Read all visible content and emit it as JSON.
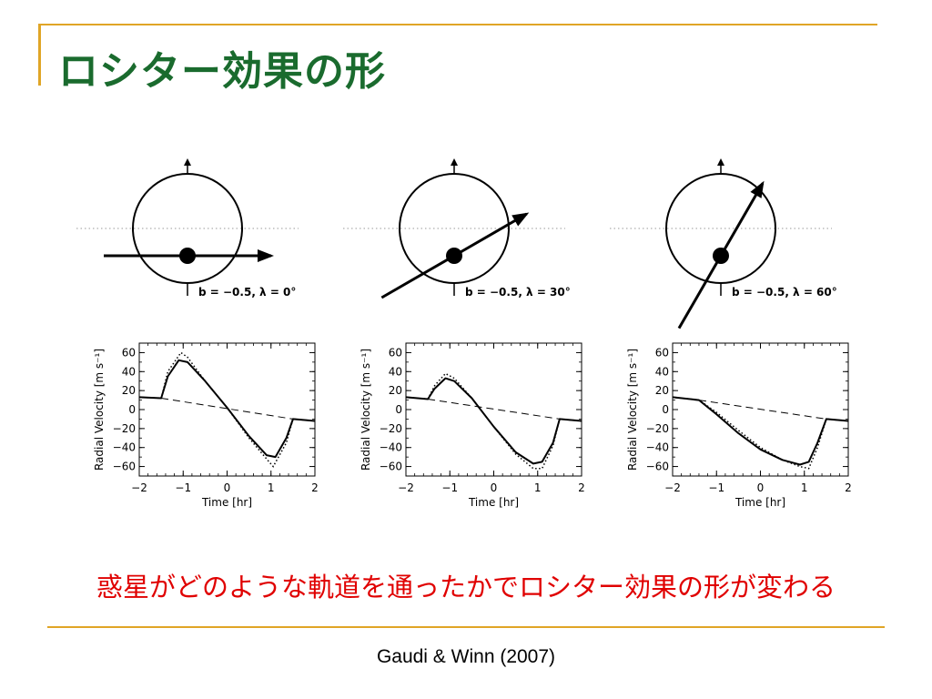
{
  "slide": {
    "title": "ロシター効果の形",
    "caption": "惑星がどのような軌道を通ったかでロシター効果の形が変わる",
    "credit": "Gaudi & Winn (2007)",
    "accent_color": "#e0a526",
    "title_color": "#1a6b2e",
    "caption_color": "#e00000"
  },
  "diagrams": [
    {
      "label": "b = −0.5, λ = 0°",
      "b": -0.5,
      "lambda_deg": 0
    },
    {
      "label": "b = −0.5, λ = 30°",
      "b": -0.5,
      "lambda_deg": 30
    },
    {
      "label": "b = −0.5, λ = 60°",
      "b": -0.5,
      "lambda_deg": 60
    }
  ],
  "chart_data": [
    {
      "type": "line",
      "xlabel": "Time [hr]",
      "ylabel": "Radial Velocity [m s⁻¹]",
      "xlim": [
        -2,
        2
      ],
      "ylim": [
        -70,
        70
      ],
      "xticks": [
        "−2",
        "−1",
        "0",
        "1",
        "2"
      ],
      "yticks": [
        "60",
        "40",
        "20",
        "0",
        "−20",
        "−40",
        "−60"
      ],
      "series": [
        {
          "style": "solid",
          "x": [
            -2,
            -1.5,
            -1.35,
            -1.1,
            -0.9,
            -0.5,
            0,
            0.5,
            0.9,
            1.1,
            1.35,
            1.5,
            2
          ],
          "y": [
            13,
            12,
            35,
            52,
            50,
            30,
            2,
            -28,
            -48,
            -50,
            -30,
            -10,
            -12
          ]
        },
        {
          "style": "dotted",
          "x": [
            -2,
            -1.5,
            -1.35,
            -1.05,
            -0.9,
            -0.5,
            0,
            0.5,
            0.9,
            1.05,
            1.35,
            1.5,
            2
          ],
          "y": [
            13,
            12,
            40,
            60,
            55,
            30,
            2,
            -30,
            -52,
            -60,
            -35,
            -10,
            -12
          ]
        },
        {
          "style": "dashed",
          "x": [
            -1.5,
            1.5
          ],
          "y": [
            12,
            -10
          ]
        }
      ]
    },
    {
      "type": "line",
      "xlabel": "Time [hr]",
      "ylabel": "Radial Velocity [m s⁻¹]",
      "xlim": [
        -2,
        2
      ],
      "ylim": [
        -70,
        70
      ],
      "xticks": [
        "−2",
        "−1",
        "0",
        "1",
        "2"
      ],
      "yticks": [
        "60",
        "40",
        "20",
        "0",
        "−20",
        "−40",
        "−60"
      ],
      "series": [
        {
          "style": "solid",
          "x": [
            -2,
            -1.5,
            -1.35,
            -1.1,
            -0.9,
            -0.5,
            0,
            0.5,
            0.9,
            1.1,
            1.35,
            1.5,
            2
          ],
          "y": [
            13,
            11,
            22,
            33,
            30,
            12,
            -18,
            -45,
            -57,
            -55,
            -35,
            -10,
            -12
          ]
        },
        {
          "style": "dotted",
          "x": [
            -2,
            -1.5,
            -1.35,
            -1.1,
            -0.9,
            -0.5,
            0,
            0.5,
            0.9,
            1.1,
            1.35,
            1.5,
            2
          ],
          "y": [
            13,
            11,
            25,
            38,
            33,
            12,
            -18,
            -47,
            -62,
            -62,
            -38,
            -10,
            -12
          ]
        },
        {
          "style": "dashed",
          "x": [
            -1.5,
            1.5
          ],
          "y": [
            11,
            -10
          ]
        }
      ]
    },
    {
      "type": "line",
      "xlabel": "Time [hr]",
      "ylabel": "Radial Velocity [m s⁻¹]",
      "xlim": [
        -2,
        2
      ],
      "ylim": [
        -70,
        70
      ],
      "xticks": [
        "−2",
        "−1",
        "0",
        "1",
        "2"
      ],
      "yticks": [
        "60",
        "40",
        "20",
        "0",
        "−20",
        "−40",
        "−60"
      ],
      "series": [
        {
          "style": "solid",
          "x": [
            -2,
            -1.4,
            -1,
            -0.5,
            0,
            0.5,
            0.9,
            1.1,
            1.3,
            1.5,
            2
          ],
          "y": [
            13,
            10,
            -5,
            -25,
            -42,
            -53,
            -58,
            -55,
            -35,
            -10,
            -12
          ]
        },
        {
          "style": "dotted",
          "x": [
            -2,
            -1.4,
            -1,
            -0.5,
            0,
            0.5,
            0.9,
            1.1,
            1.3,
            1.5,
            2
          ],
          "y": [
            13,
            10,
            -3,
            -22,
            -40,
            -53,
            -60,
            -62,
            -40,
            -10,
            -12
          ]
        },
        {
          "style": "dashed",
          "x": [
            -1.4,
            1.5
          ],
          "y": [
            10,
            -10
          ]
        }
      ]
    }
  ]
}
